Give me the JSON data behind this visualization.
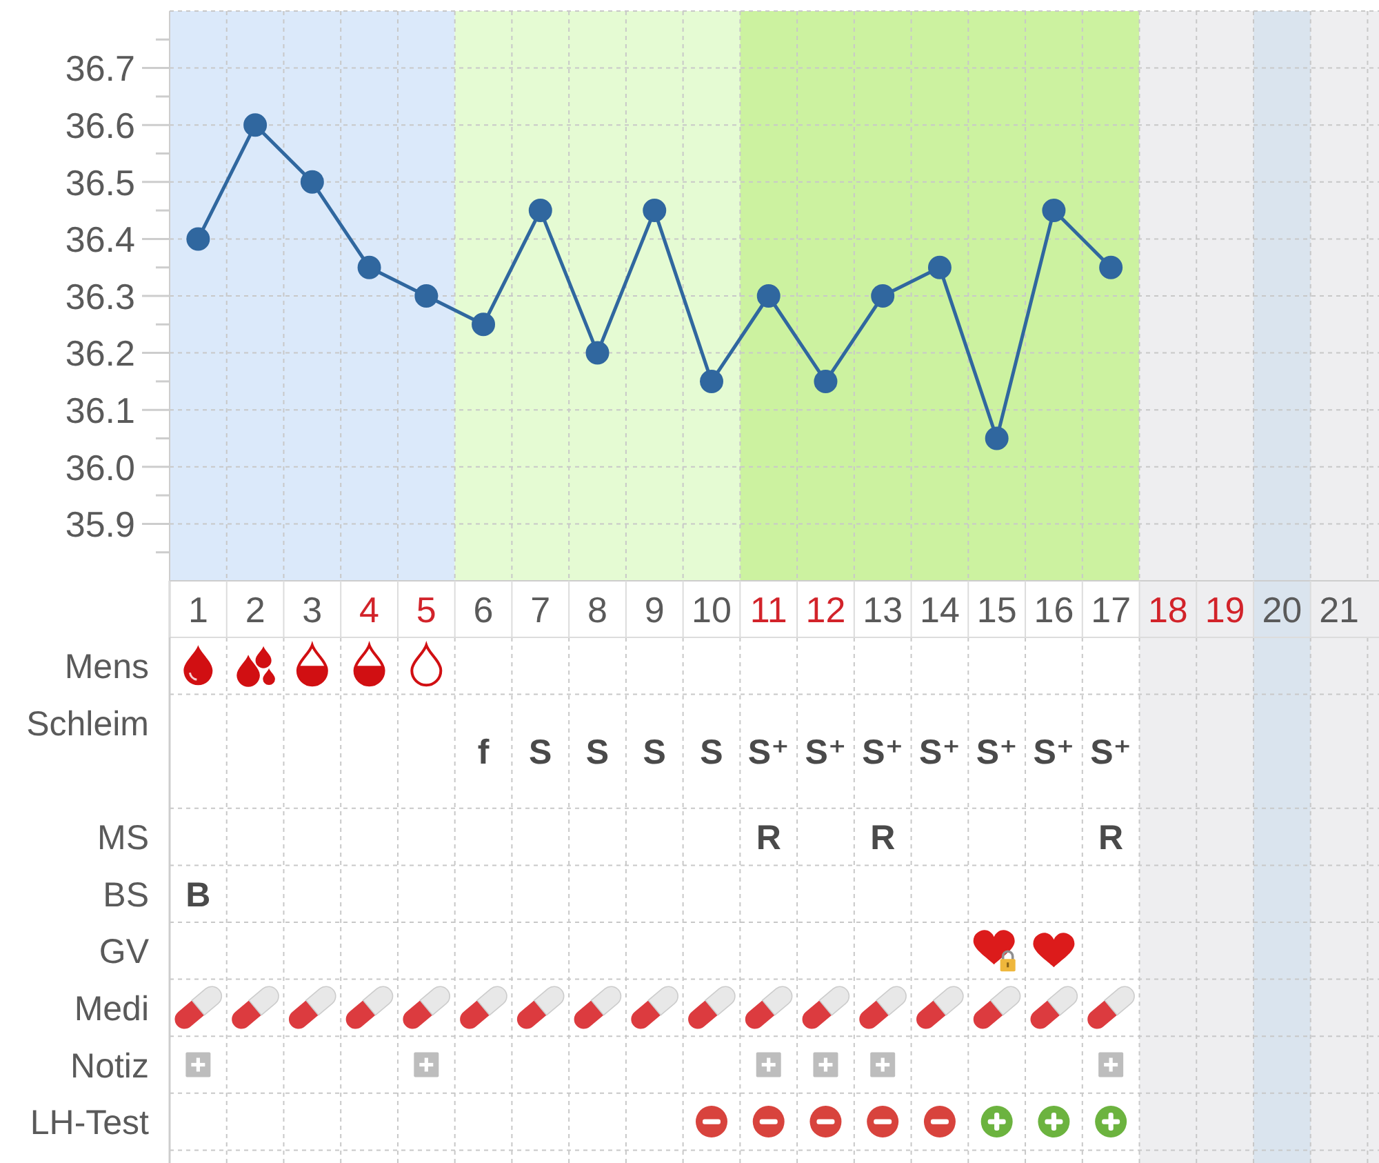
{
  "chart_data": [
    {
      "type": "line",
      "x": [
        1,
        2,
        3,
        4,
        5,
        6,
        7,
        8,
        9,
        10,
        11,
        12,
        13,
        14,
        15,
        16,
        17
      ],
      "values": [
        36.4,
        36.6,
        36.5,
        36.35,
        36.3,
        36.25,
        36.45,
        36.2,
        36.45,
        36.15,
        36.3,
        36.15,
        36.3,
        36.35,
        36.05,
        36.45,
        36.35
      ],
      "color": "#30679f",
      "marker": "circle",
      "line_style": "solid",
      "grid": true,
      "xlim": [
        0.5,
        21.7
      ],
      "xticks": [
        1,
        2,
        3,
        4,
        5,
        6,
        7,
        8,
        9,
        10,
        11,
        12,
        13,
        14,
        15,
        16,
        17,
        18,
        19,
        20,
        21
      ],
      "ylim": [
        35.8,
        36.8
      ],
      "yticks": [
        {
          "value": 35.85,
          "label": null
        },
        35.9,
        {
          "value": 35.95,
          "label": null
        },
        {
          "value": 36,
          "label": "36.0"
        },
        {
          "value": 36.05,
          "label": null
        },
        36.1,
        {
          "value": 36.15,
          "label": null
        },
        36.2,
        {
          "value": 36.25,
          "label": null
        },
        36.3,
        {
          "value": 36.35,
          "label": null
        },
        36.4,
        {
          "value": 36.45,
          "label": null
        },
        36.5,
        {
          "value": 36.55,
          "label": null
        },
        36.6,
        {
          "value": 36.65,
          "label": null
        },
        36.7,
        {
          "value": 36.75,
          "label": null
        }
      ],
      "bands": [
        {
          "axis": "x",
          "from": 0.5,
          "to": 5.5,
          "color": "#dbe9fa"
        },
        {
          "axis": "x",
          "from": 5.5,
          "to": 10.5,
          "color": "#e5fbd3"
        },
        {
          "axis": "x",
          "from": 10.5,
          "to": 17.5,
          "color": "#ccf2a0"
        },
        {
          "axis": "x",
          "from": 17.5,
          "to": 21.7,
          "color": "#eeeef0"
        },
        {
          "axis": "x",
          "from": 19.5,
          "to": 20.5,
          "color": "#dae4ee"
        }
      ]
    },
    {
      "type": "other",
      "categories": [
        null,
        null,
        null,
        null,
        null,
        null,
        null,
        null,
        null,
        null,
        null,
        null,
        null,
        null,
        null,
        null,
        null,
        null,
        null,
        null,
        null
      ],
      "y_categories": [
        "Mens",
        "Schleim",
        "MS",
        "BS",
        "GV",
        "Medi",
        "Notiz",
        "LH-Test"
      ],
      "cell_labels": [
        [
          null,
          null,
          null,
          null,
          null,
          null,
          null,
          null,
          null,
          null,
          null,
          null,
          null,
          null,
          null,
          null,
          null,
          null,
          null,
          null,
          null
        ],
        [
          null,
          null,
          null,
          null,
          null,
          "f",
          "S",
          "S",
          "S",
          "S",
          "S⁺",
          "S⁺",
          "S⁺",
          "S⁺",
          "S⁺",
          "S⁺",
          "S⁺",
          null,
          null,
          null,
          null
        ],
        [
          null,
          null,
          null,
          null,
          null,
          null,
          null,
          null,
          null,
          null,
          "R",
          null,
          "R",
          null,
          null,
          null,
          "R",
          null,
          null,
          null,
          null
        ],
        [
          "B",
          null,
          null,
          null,
          null,
          null,
          null,
          null,
          null,
          null,
          null,
          null,
          null,
          null,
          null,
          null,
          null,
          null,
          null,
          null,
          null
        ],
        [
          null,
          null,
          null,
          null,
          null,
          null,
          null,
          null,
          null,
          null,
          null,
          null,
          null,
          null,
          null,
          null,
          null,
          null,
          null,
          null,
          null
        ],
        [
          null,
          null,
          null,
          null,
          null,
          null,
          null,
          null,
          null,
          null,
          null,
          null,
          null,
          null,
          null,
          null,
          null,
          null,
          null,
          null,
          null
        ],
        [
          null,
          null,
          null,
          null,
          null,
          null,
          null,
          null,
          null,
          null,
          null,
          null,
          null,
          null,
          null,
          null,
          null,
          null,
          null,
          null,
          null
        ],
        [
          null,
          null,
          null,
          null,
          null,
          null,
          null,
          null,
          null,
          null,
          null,
          null,
          null,
          null,
          null,
          null,
          null,
          null,
          null,
          null,
          null
        ]
      ]
    }
  ]
}
